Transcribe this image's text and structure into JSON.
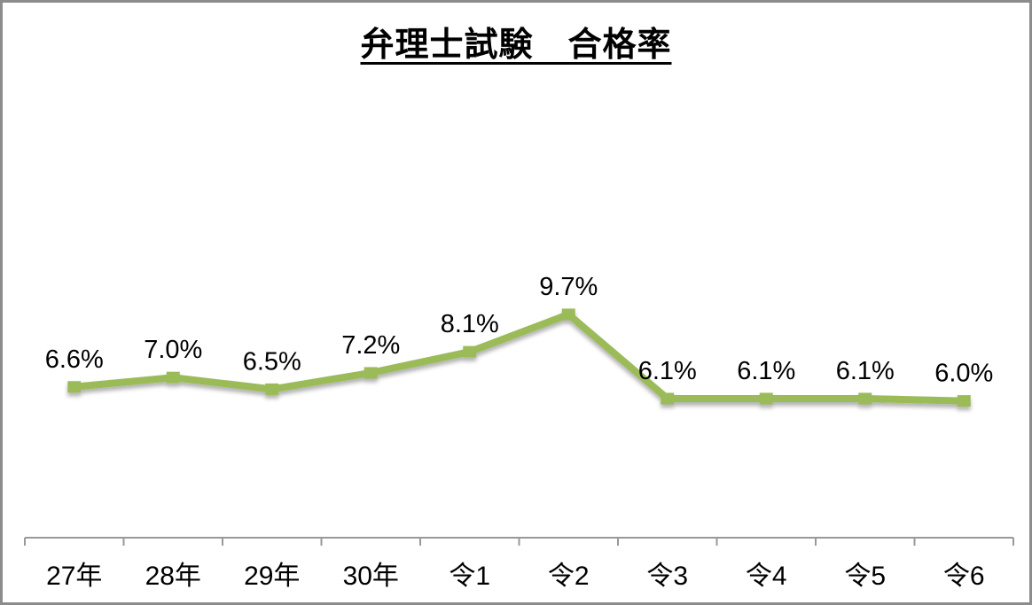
{
  "chart_data": {
    "type": "line",
    "title": "弁理士試験　合格率",
    "categories": [
      "27年",
      "28年",
      "29年",
      "30年",
      "令1",
      "令2",
      "令3",
      "令4",
      "令5",
      "令6"
    ],
    "values": [
      6.6,
      7.0,
      6.5,
      7.2,
      8.1,
      9.7,
      6.1,
      6.1,
      6.1,
      6.0
    ],
    "data_labels": [
      "6.6%",
      "7.0%",
      "6.5%",
      "7.2%",
      "8.1%",
      "9.7%",
      "6.1%",
      "6.1%",
      "6.1%",
      "6.0%"
    ],
    "xlabel": "",
    "ylabel": "",
    "ylim": [
      0,
      12
    ],
    "grid": false,
    "legend": false,
    "line_color": "#9BBB59",
    "marker": "square",
    "axis_color": "#999999",
    "text_color": "#000000",
    "border_color": "#8C8C8C",
    "background_color": "#FFFFFF"
  }
}
